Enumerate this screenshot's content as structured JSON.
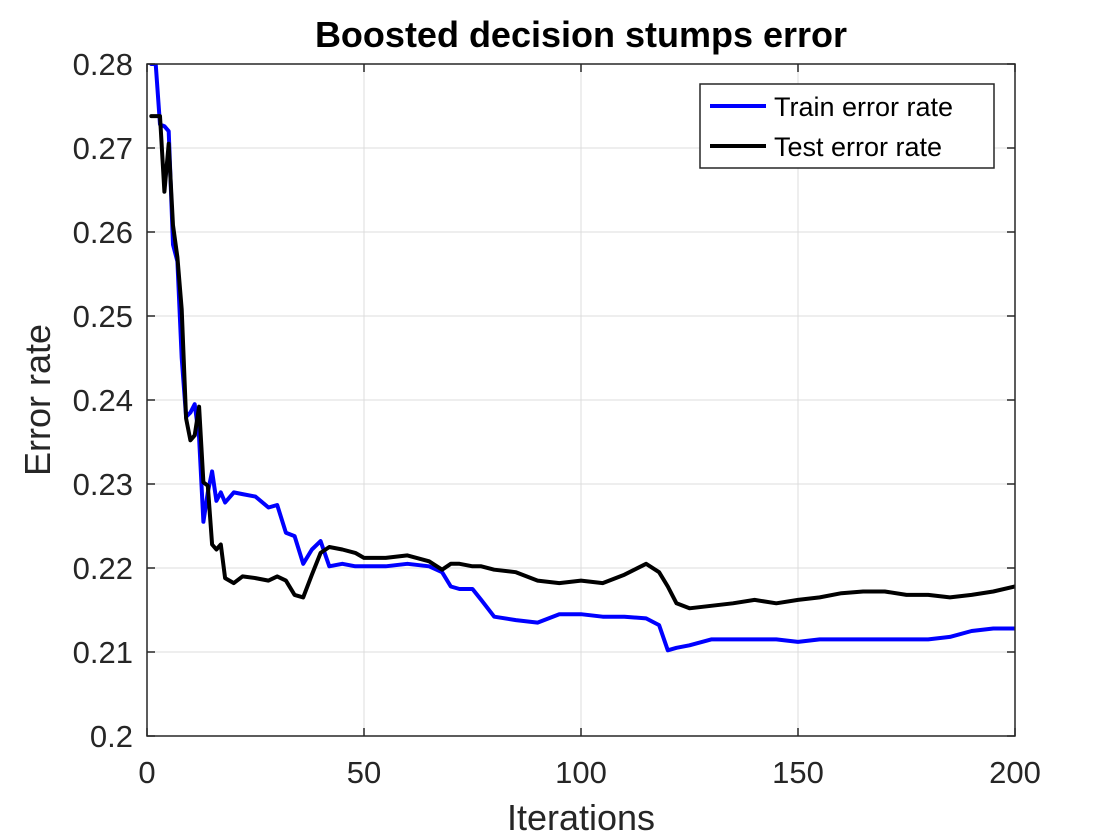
{
  "chart_data": {
    "type": "line",
    "title": "Boosted decision stumps error",
    "xlabel": "Iterations",
    "ylabel": "Error rate",
    "xlim": [
      0,
      200
    ],
    "ylim": [
      0.2,
      0.28
    ],
    "xticks": [
      0,
      50,
      100,
      150,
      200
    ],
    "xtick_labels": [
      "0",
      "50",
      "100",
      "150",
      "200"
    ],
    "yticks": [
      0.2,
      0.21,
      0.22,
      0.23,
      0.24,
      0.25,
      0.26,
      0.27,
      0.28
    ],
    "ytick_labels": [
      "0.2",
      "0.21",
      "0.22",
      "0.23",
      "0.24",
      "0.25",
      "0.26",
      "0.27",
      "0.28"
    ],
    "grid": true,
    "legend_position": "top-right",
    "series": [
      {
        "name": "Train error rate",
        "color": "#0000ff",
        "x": [
          1,
          2,
          3,
          4,
          5,
          6,
          7,
          8,
          9,
          10,
          11,
          12,
          13,
          14,
          15,
          16,
          17,
          18,
          20,
          22,
          25,
          28,
          30,
          32,
          34,
          36,
          38,
          40,
          42,
          45,
          48,
          50,
          55,
          60,
          65,
          68,
          70,
          72,
          75,
          77,
          80,
          85,
          90,
          95,
          100,
          105,
          110,
          115,
          118,
          120,
          122,
          125,
          130,
          135,
          140,
          145,
          150,
          155,
          160,
          165,
          170,
          175,
          180,
          185,
          190,
          195,
          200
        ],
        "y": [
          0.28,
          0.28,
          0.2728,
          0.2726,
          0.272,
          0.2585,
          0.2565,
          0.245,
          0.238,
          0.2385,
          0.2395,
          0.2355,
          0.2255,
          0.229,
          0.2315,
          0.228,
          0.229,
          0.2278,
          0.229,
          0.2288,
          0.2285,
          0.2272,
          0.2275,
          0.2242,
          0.2238,
          0.2205,
          0.2222,
          0.2232,
          0.2202,
          0.2205,
          0.2202,
          0.2202,
          0.2202,
          0.2205,
          0.2202,
          0.2195,
          0.2178,
          0.2175,
          0.2175,
          0.2162,
          0.2142,
          0.2138,
          0.2135,
          0.2145,
          0.2145,
          0.2142,
          0.2142,
          0.214,
          0.2132,
          0.2102,
          0.2105,
          0.2108,
          0.2115,
          0.2115,
          0.2115,
          0.2115,
          0.2112,
          0.2115,
          0.2115,
          0.2115,
          0.2115,
          0.2115,
          0.2115,
          0.2118,
          0.2125,
          0.2128,
          0.2128
        ]
      },
      {
        "name": "Test error rate",
        "color": "#000000",
        "x": [
          1,
          2,
          3,
          4,
          5,
          6,
          7,
          8,
          9,
          10,
          11,
          12,
          13,
          14,
          15,
          16,
          17,
          18,
          20,
          22,
          25,
          28,
          30,
          32,
          34,
          36,
          38,
          40,
          42,
          45,
          48,
          50,
          55,
          60,
          65,
          68,
          70,
          72,
          75,
          77,
          80,
          85,
          90,
          95,
          100,
          105,
          110,
          115,
          118,
          120,
          122,
          125,
          130,
          135,
          140,
          145,
          150,
          155,
          160,
          165,
          170,
          175,
          180,
          185,
          190,
          195,
          200
        ],
        "y": [
          0.2738,
          0.2738,
          0.2738,
          0.2648,
          0.2705,
          0.2608,
          0.257,
          0.2508,
          0.2378,
          0.2352,
          0.2358,
          0.2392,
          0.2302,
          0.2298,
          0.2228,
          0.2222,
          0.2228,
          0.2188,
          0.2182,
          0.219,
          0.2188,
          0.2185,
          0.219,
          0.2185,
          0.2168,
          0.2165,
          0.2192,
          0.2218,
          0.2225,
          0.2222,
          0.2218,
          0.2212,
          0.2212,
          0.2215,
          0.2208,
          0.2198,
          0.2205,
          0.2205,
          0.2202,
          0.2202,
          0.2198,
          0.2195,
          0.2185,
          0.2182,
          0.2185,
          0.2182,
          0.2192,
          0.2205,
          0.2195,
          0.2178,
          0.2158,
          0.2152,
          0.2155,
          0.2158,
          0.2162,
          0.2158,
          0.2162,
          0.2165,
          0.217,
          0.2172,
          0.2172,
          0.2168,
          0.2168,
          0.2165,
          0.2168,
          0.2172,
          0.2178
        ]
      }
    ]
  }
}
